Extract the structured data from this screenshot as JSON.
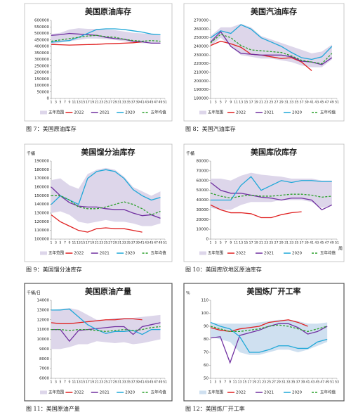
{
  "chart_data": [
    {
      "type": "line",
      "title": "美国原油库存",
      "caption": "图 7：美国原油库存",
      "x": [
        1,
        5,
        9,
        13,
        17,
        21,
        25,
        29,
        33,
        37,
        41,
        45,
        49
      ],
      "xlim": [
        1,
        51
      ],
      "xticks": [
        1,
        3,
        5,
        7,
        9,
        11,
        13,
        15,
        17,
        19,
        21,
        23,
        25,
        27,
        29,
        31,
        33,
        35,
        37,
        39,
        41,
        43,
        45,
        47,
        49,
        51
      ],
      "ylim": [
        0,
        600000
      ],
      "yticks": [
        0,
        50000,
        100000,
        150000,
        200000,
        250000,
        300000,
        350000,
        400000,
        450000,
        500000,
        550000,
        600000
      ],
      "range": {
        "name": "五年范围",
        "color": "#ddd6ea",
        "low": [
          415000,
          430000,
          440000,
          450000,
          460000,
          460000,
          455000,
          450000,
          440000,
          430000,
          425000,
          425000,
          425000
        ],
        "high": [
          495000,
          505000,
          530000,
          540000,
          535000,
          535000,
          530000,
          525000,
          515000,
          505000,
          500000,
          495000,
          490000
        ]
      },
      "series": [
        {
          "name": "2022",
          "color": "#e02020",
          "values": [
            415000,
            413000,
            410000,
            412000,
            414000,
            416000,
            420000,
            422000,
            425000,
            428000,
            435000,
            null,
            null
          ]
        },
        {
          "name": "2021",
          "color": "#7030a0",
          "values": [
            485000,
            490000,
            500000,
            495000,
            490000,
            485000,
            470000,
            460000,
            455000,
            440000,
            435000,
            425000,
            425000
          ]
        },
        {
          "name": "2020",
          "color": "#1fa8d8",
          "values": [
            432000,
            440000,
            445000,
            470000,
            500000,
            530000,
            535000,
            535000,
            530000,
            520000,
            510000,
            495000,
            490000
          ]
        },
        {
          "name": "五年均值",
          "color": "#2aa02a",
          "dash": true,
          "values": [
            440000,
            450000,
            460000,
            470000,
            480000,
            485000,
            475000,
            470000,
            455000,
            445000,
            440000,
            445000,
            440000
          ]
        }
      ]
    },
    {
      "type": "line",
      "title": "美国汽油库存",
      "caption": "图 8：美国汽油库存",
      "x": [
        1,
        5,
        9,
        13,
        17,
        21,
        25,
        29,
        33,
        37,
        41,
        45,
        49
      ],
      "xlim": [
        1,
        51
      ],
      "xticks": [
        1,
        3,
        5,
        7,
        9,
        11,
        13,
        15,
        17,
        19,
        21,
        23,
        25,
        27,
        29,
        31,
        33,
        35,
        37,
        39,
        41,
        43,
        45,
        47,
        49,
        51
      ],
      "ylim": [
        180000,
        270000
      ],
      "yticks": [
        180000,
        190000,
        200000,
        210000,
        220000,
        230000,
        240000,
        250000,
        260000,
        270000
      ],
      "range": {
        "name": "五年范围",
        "color": "#ddd6ea",
        "low": [
          240000,
          250000,
          240000,
          230000,
          228000,
          226000,
          226000,
          224000,
          222000,
          218000,
          216000,
          216000,
          225000
        ],
        "high": [
          252000,
          262000,
          262000,
          266000,
          262000,
          252000,
          248000,
          244000,
          240000,
          236000,
          232000,
          234000,
          242000
        ]
      },
      "series": [
        {
          "name": "2022",
          "color": "#e02020",
          "values": [
            241000,
            246000,
            243000,
            239000,
            231000,
            230000,
            228000,
            226000,
            227000,
            222000,
            212000,
            null,
            null
          ]
        },
        {
          "name": "2021",
          "color": "#7030a0",
          "values": [
            245000,
            257000,
            240000,
            232000,
            231000,
            230000,
            230000,
            230000,
            228000,
            223000,
            222000,
            219000,
            227000
          ]
        },
        {
          "name": "2020",
          "color": "#1fa8d8",
          "values": [
            250000,
            258000,
            255000,
            265000,
            260000,
            250000,
            245000,
            240000,
            233000,
            227000,
            225000,
            228000,
            240000
          ]
        },
        {
          "name": "五年均值",
          "color": "#2aa02a",
          "dash": true,
          "values": [
            244000,
            254000,
            250000,
            241000,
            236000,
            235000,
            234000,
            233000,
            229000,
            224000,
            222000,
            220000,
            232000
          ]
        }
      ]
    },
    {
      "type": "line",
      "title": "美国馏分油库存",
      "caption": "图 9：美国馏分油库存",
      "y_label": "千桶",
      "x": [
        1,
        5,
        9,
        13,
        17,
        21,
        25,
        29,
        33,
        37,
        41,
        45,
        49
      ],
      "xlim": [
        1,
        51
      ],
      "xticks": [
        1,
        3,
        5,
        7,
        9,
        11,
        13,
        15,
        17,
        19,
        21,
        23,
        25,
        27,
        29,
        31,
        33,
        35,
        37,
        39,
        41,
        43,
        45,
        47,
        49,
        51
      ],
      "ylim": [
        100000,
        190000
      ],
      "yticks": [
        100000,
        110000,
        120000,
        130000,
        140000,
        150000,
        160000,
        170000,
        180000,
        190000
      ],
      "range": {
        "name": "五年范围",
        "color": "#ddd6ea",
        "low": [
          130000,
          132000,
          128000,
          120000,
          118000,
          120000,
          122000,
          120000,
          120000,
          118000,
          115000,
          115000,
          118000
        ],
        "high": [
          168000,
          170000,
          162000,
          158000,
          175000,
          180000,
          182000,
          180000,
          172000,
          160000,
          155000,
          150000,
          155000
        ]
      },
      "series": [
        {
          "name": "2022",
          "color": "#e02020",
          "values": [
            128000,
            120000,
            115000,
            110000,
            108000,
            112000,
            113000,
            112000,
            112000,
            110000,
            108000,
            null,
            null
          ]
        },
        {
          "name": "2021",
          "color": "#7030a0",
          "values": [
            160000,
            150000,
            142000,
            138000,
            137000,
            137000,
            135000,
            134000,
            134000,
            130000,
            127000,
            128000,
            124000
          ]
        },
        {
          "name": "2020",
          "color": "#1fa8d8",
          "values": [
            140000,
            150000,
            145000,
            140000,
            170000,
            178000,
            180000,
            178000,
            170000,
            157000,
            150000,
            145000,
            148000
          ]
        },
        {
          "name": "五年均值",
          "color": "#2aa02a",
          "dash": true,
          "values": [
            150000,
            150000,
            145000,
            137000,
            135000,
            135000,
            137000,
            140000,
            143000,
            140000,
            135000,
            128000,
            132000
          ]
        }
      ]
    },
    {
      "type": "line",
      "title": "美国库欣库存",
      "caption": "图 10：美国库欣地区原油库存",
      "y_label": "千桶",
      "x_label": "周",
      "x": [
        1,
        5,
        9,
        13,
        17,
        21,
        25,
        29,
        33,
        37,
        41,
        45,
        49
      ],
      "xlim": [
        1,
        51
      ],
      "xticks": [
        1,
        3,
        5,
        7,
        9,
        11,
        13,
        15,
        17,
        19,
        21,
        23,
        25,
        27,
        29,
        31,
        33,
        35,
        37,
        39,
        41,
        43,
        45,
        47,
        49,
        51
      ],
      "ylim": [
        0,
        80000
      ],
      "yticks": [
        0,
        10000,
        20000,
        30000,
        40000,
        50000,
        60000,
        70000,
        80000
      ],
      "range": {
        "name": "五年范围",
        "color": "#ddd6ea",
        "low": [
          32000,
          30000,
          30000,
          35000,
          38000,
          38000,
          38000,
          40000,
          40000,
          40000,
          38000,
          32000,
          35000
        ],
        "high": [
          62000,
          62000,
          60000,
          65000,
          68000,
          66000,
          65000,
          64000,
          62000,
          62000,
          62000,
          60000,
          60000
        ]
      },
      "series": [
        {
          "name": "2022",
          "color": "#e02020",
          "values": [
            35000,
            30000,
            27000,
            27000,
            26000,
            22000,
            22000,
            25000,
            27000,
            28000,
            null,
            null,
            null
          ]
        },
        {
          "name": "2021",
          "color": "#7030a0",
          "values": [
            58000,
            50000,
            47000,
            47000,
            45000,
            43000,
            42000,
            40000,
            42000,
            42000,
            40000,
            30000,
            35000
          ]
        },
        {
          "name": "2020",
          "color": "#1fa8d8",
          "values": [
            40000,
            40000,
            40000,
            55000,
            64000,
            50000,
            55000,
            60000,
            58000,
            60000,
            60000,
            59000,
            59000
          ]
        },
        {
          "name": "五年均值",
          "color": "#2aa02a",
          "dash": true,
          "values": [
            47000,
            44000,
            42000,
            44000,
            45000,
            44000,
            44000,
            45000,
            46000,
            46000,
            45000,
            43000,
            44000
          ]
        }
      ]
    },
    {
      "type": "line",
      "title": "美国原油产量",
      "caption": "图 11：美国原油产量",
      "y_label": "千桶/日",
      "x": [
        1,
        5,
        9,
        13,
        17,
        21,
        25,
        29,
        33,
        37,
        41,
        45,
        49
      ],
      "xlim": [
        1,
        51
      ],
      "xticks": [
        1,
        3,
        5,
        7,
        9,
        11,
        13,
        15,
        17,
        19,
        21,
        23,
        25,
        27,
        29,
        31,
        33,
        35,
        37,
        39,
        41,
        43,
        45,
        47,
        49,
        51
      ],
      "ylim": [
        6000,
        14000
      ],
      "yticks": [
        6000,
        7000,
        8000,
        9000,
        10000,
        11000,
        12000,
        13000,
        14000
      ],
      "range": {
        "name": "五年范围",
        "color": "#ddd6ea",
        "low": [
          9000,
          9000,
          9200,
          9500,
          9500,
          9800,
          9700,
          9600,
          9700,
          9500,
          9600,
          9800,
          10000
        ],
        "high": [
          13000,
          13100,
          13200,
          13000,
          12500,
          12000,
          12000,
          12200,
          12200,
          12200,
          12300,
          12400,
          12500
        ]
      },
      "series": [
        {
          "name": "2022",
          "color": "#e02020",
          "values": [
            11700,
            11600,
            11600,
            11700,
            11800,
            11900,
            12000,
            12000,
            12100,
            12100,
            12000,
            null,
            null
          ]
        },
        {
          "name": "2021",
          "color": "#7030a0",
          "values": [
            11000,
            11000,
            9800,
            10900,
            11000,
            11100,
            11200,
            11300,
            11300,
            10500,
            11300,
            11500,
            11700
          ]
        },
        {
          "name": "2020",
          "color": "#1fa8d8",
          "values": [
            13000,
            13000,
            13100,
            12300,
            11500,
            11000,
            10600,
            10800,
            10800,
            10900,
            10500,
            11000,
            11000
          ]
        },
        {
          "name": "五年均值",
          "color": "#2aa02a",
          "dash": true,
          "values": [
            11000,
            11000,
            10900,
            11000,
            11000,
            10900,
            10800,
            10900,
            11000,
            10900,
            11000,
            11200,
            11300
          ]
        }
      ]
    },
    {
      "type": "line",
      "title": "美国炼厂开工率",
      "caption": "图 12：美国炼厂开工率",
      "y_label": "%",
      "x": [
        1,
        5,
        9,
        13,
        17,
        21,
        25,
        29,
        33,
        37,
        41,
        45,
        49
      ],
      "xlim": [
        1,
        53
      ],
      "xticks": [
        1,
        3,
        5,
        7,
        9,
        11,
        13,
        15,
        17,
        19,
        21,
        23,
        25,
        27,
        29,
        31,
        33,
        35,
        37,
        39,
        41,
        43,
        45,
        47,
        49,
        51,
        53
      ],
      "ylim": [
        50,
        110
      ],
      "yticks": [
        50,
        60,
        70,
        80,
        90,
        100,
        110
      ],
      "range": {
        "name": "五年范围",
        "color": "#cfe0f0",
        "low": [
          82,
          80,
          78,
          70,
          68,
          68,
          70,
          72,
          72,
          70,
          72,
          75,
          78
        ],
        "high": [
          93,
          92,
          92,
          92,
          92,
          93,
          94,
          95,
          95,
          94,
          92,
          92,
          93
        ]
      },
      "series": [
        {
          "name": "2022",
          "color": "#e02020",
          "values": [
            89,
            87,
            86,
            88,
            89,
            90,
            93,
            94,
            95,
            93,
            90,
            null,
            null
          ]
        },
        {
          "name": "2021",
          "color": "#7030a0",
          "values": [
            81,
            82,
            62,
            83,
            85,
            87,
            90,
            92,
            92,
            89,
            84,
            86,
            90
          ]
        },
        {
          "name": "2020",
          "color": "#1fa8d8",
          "values": [
            93,
            90,
            88,
            82,
            70,
            70,
            72,
            75,
            75,
            73,
            73,
            78,
            80
          ]
        },
        {
          "name": "五年均值",
          "color": "#2aa02a",
          "dash": true,
          "values": [
            90,
            88,
            86,
            86,
            87,
            88,
            90,
            91,
            90,
            88,
            86,
            88,
            90
          ]
        }
      ]
    }
  ]
}
